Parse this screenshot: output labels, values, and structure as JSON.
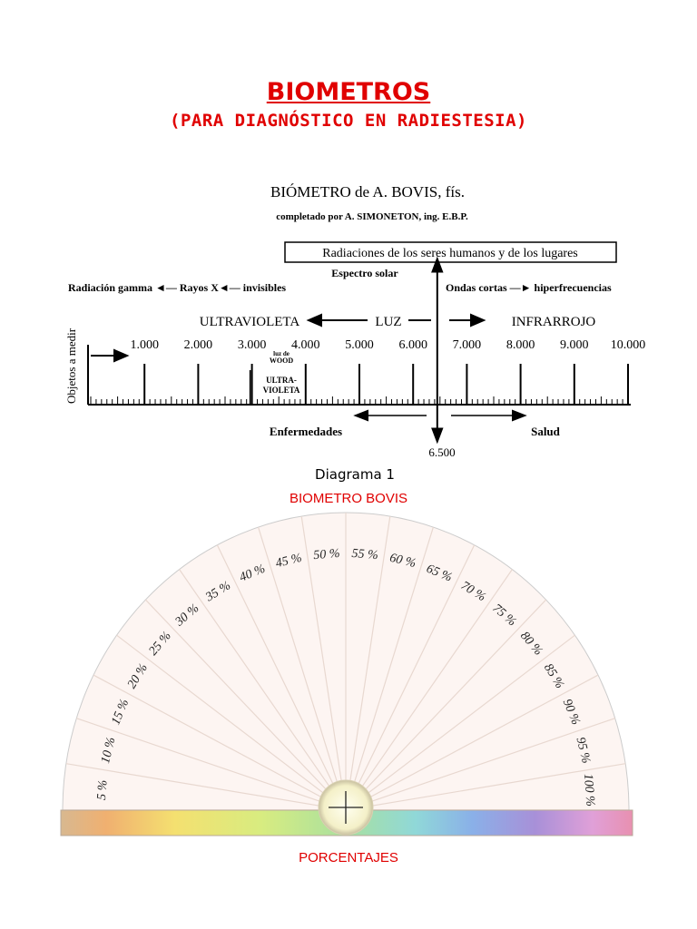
{
  "title": "BIOMETROS",
  "subtitle": "(PARA DIAGNÓSTICO EN RADIESTESIA)",
  "diagram": {
    "heading": "BIÓMETRO de A. BOVIS, fís.",
    "subheading": "completado por A. SIMONETON, ing. E.B.P.",
    "box_label": "Radiaciones de los seres humanos y de los lugares",
    "espectro": "Espectro solar",
    "left_chain": "Radiación gamma ◄— Rayos X◄— invisibles",
    "right_chain": "Ondas cortas —► hiperfrecuencias",
    "vertical_label": "Objetos a medir",
    "ultravioleta": "ULTRAVIOLETA",
    "luz": "LUZ",
    "infrarrojo": "INFRARROJO",
    "scale": [
      "1.000",
      "2.000",
      "3.000",
      "4.000",
      "5.000",
      "6.000",
      "7.000",
      "8.000",
      "9.000",
      "10.000"
    ],
    "wood": [
      "luz de",
      "WOOD"
    ],
    "ultra_box": [
      "ULTRA-",
      "VIOLETA"
    ],
    "enfermedades": "Enfermedades",
    "salud": "Salud",
    "marker_value": "6.500",
    "marker": 6500,
    "caption": "Diagrama 1"
  },
  "bovis_caption": "BIOMETRO BOVIS",
  "protractor": {
    "labels": [
      "5 %",
      "10 %",
      "15 %",
      "20 %",
      "25 %",
      "30 %",
      "35 %",
      "40 %",
      "45 %",
      "50 %",
      "55 %",
      "60 %",
      "65 %",
      "70 %",
      "75 %",
      "80 %",
      "85 %",
      "90 %",
      "95 %",
      "100 %"
    ]
  },
  "bottom_caption": "PORCENTAJES"
}
